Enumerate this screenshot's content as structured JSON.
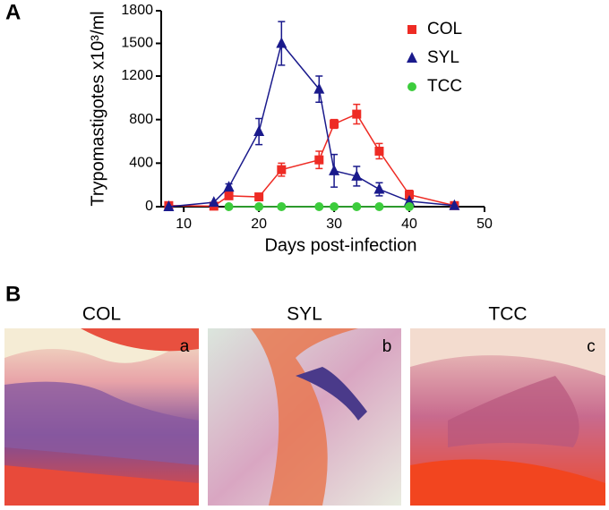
{
  "chart_data": {
    "type": "line",
    "x_label": "Days post-infection",
    "y_label": "Trypomastigotes x10³/ml",
    "x": [
      8,
      14,
      16,
      20,
      23,
      28,
      30,
      33,
      36,
      40,
      46
    ],
    "series": [
      {
        "name": "COL",
        "color": "#ee2b24",
        "marker": "square",
        "values": [
          10,
          5,
          100,
          90,
          340,
          430,
          760,
          850,
          510,
          110,
          10
        ],
        "errors": [
          null,
          null,
          30,
          20,
          60,
          80,
          40,
          90,
          70,
          40,
          null
        ]
      },
      {
        "name": "SYL",
        "color": "#1a1a8c",
        "marker": "triangle",
        "values": [
          0,
          40,
          180,
          690,
          1500,
          1080,
          330,
          280,
          160,
          50,
          10
        ],
        "errors": [
          null,
          null,
          30,
          120,
          200,
          120,
          150,
          90,
          60,
          null,
          null
        ]
      },
      {
        "name": "TCC",
        "color": "#3ccc3c",
        "marker": "circle",
        "values": [
          null,
          null,
          0,
          0,
          0,
          0,
          0,
          0,
          0,
          0,
          null
        ],
        "errors": [
          null,
          null,
          null,
          null,
          null,
          null,
          null,
          null,
          null,
          null,
          null
        ]
      }
    ],
    "xlim": [
      7,
      50
    ],
    "xticks": [
      10,
      20,
      30,
      40,
      50
    ],
    "ylim": [
      0,
      1800
    ],
    "yticks": [
      0,
      400,
      800,
      1200,
      1500,
      1800
    ],
    "legend": "upper-right"
  },
  "panels": {
    "a_label": "A",
    "b_label": "B",
    "images": [
      {
        "title": "COL",
        "letter": "a"
      },
      {
        "title": "SYL",
        "letter": "b"
      },
      {
        "title": "TCC",
        "letter": "c"
      }
    ]
  }
}
